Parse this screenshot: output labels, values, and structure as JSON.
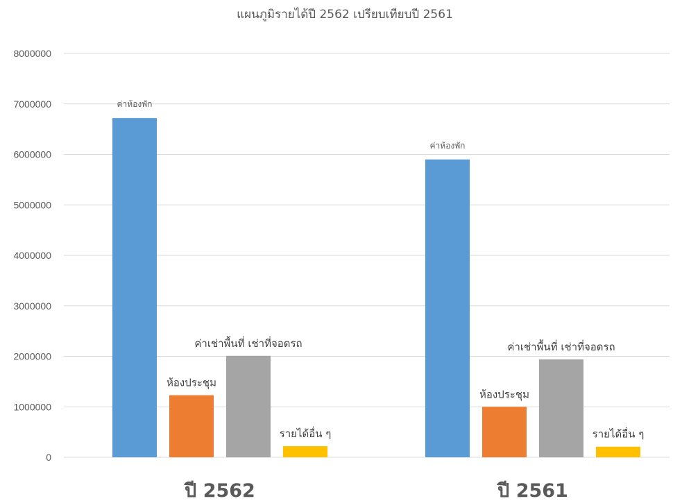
{
  "chart_data": {
    "type": "bar",
    "title": "แผนภูมิรายได้ปี 2562 เปรียบเทียบปี 2561",
    "xlabel": "",
    "ylabel": "",
    "ylim": [
      0,
      8000000
    ],
    "yticks": [
      "0",
      "1000000",
      "2000000",
      "3000000",
      "4000000",
      "5000000",
      "6000000",
      "7000000",
      "8000000"
    ],
    "grid": true,
    "categories": [
      "ปี 2562",
      "ปี 2561"
    ],
    "series": [
      {
        "name": "ค่าห้องพัก",
        "color": "#5b9bd5",
        "values": [
          6720000,
          5900000
        ]
      },
      {
        "name": "ห้องประชุม",
        "color": "#ed7d31",
        "values": [
          1230000,
          1000000
        ]
      },
      {
        "name": "ค่าเช่าพื้นที่ เช่าที่จอดรถ",
        "color": "#a5a5a5",
        "values": [
          2010000,
          1940000
        ]
      },
      {
        "name": "รายได้อื่น ๆ",
        "color": "#ffc000",
        "values": [
          220000,
          210000
        ]
      }
    ]
  }
}
